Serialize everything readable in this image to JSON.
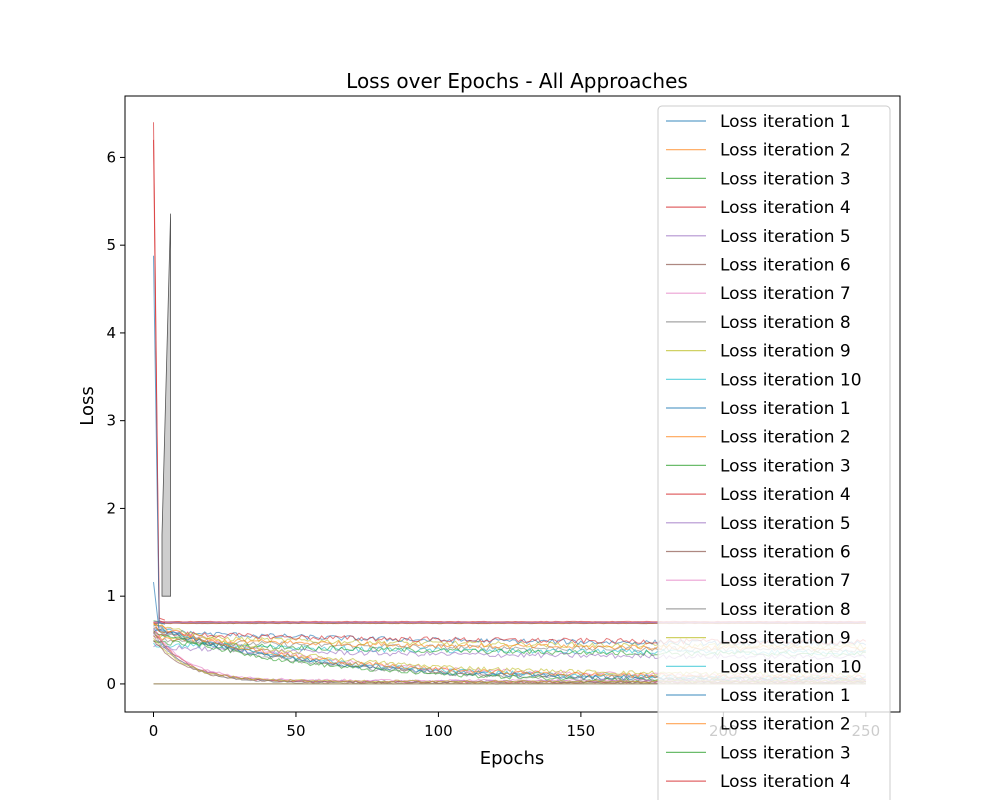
{
  "chart_data": {
    "type": "line",
    "title": "Loss over Epochs - All Approaches",
    "xlabel": "Epochs",
    "ylabel": "Loss",
    "xlim": [
      -10,
      262
    ],
    "ylim": [
      -0.32,
      6.7
    ],
    "x_ticks": [
      0,
      50,
      100,
      150,
      200,
      250
    ],
    "x_tick_labels": [
      "0",
      "50",
      "100",
      "150",
      "200",
      "250"
    ],
    "y_ticks": [
      0,
      1,
      2,
      3,
      4,
      5,
      6
    ],
    "y_tick_labels": [
      "0",
      "1",
      "2",
      "3",
      "4",
      "5",
      "6"
    ],
    "grid": false,
    "legend_position": "upper-right",
    "legend_entries": [
      {
        "label": "Loss iteration 1",
        "color": "#1f77b4"
      },
      {
        "label": "Loss iteration 2",
        "color": "#ff7f0e"
      },
      {
        "label": "Loss iteration 3",
        "color": "#2ca02c"
      },
      {
        "label": "Loss iteration 4",
        "color": "#d62728"
      },
      {
        "label": "Loss iteration 5",
        "color": "#9467bd"
      },
      {
        "label": "Loss iteration 6",
        "color": "#8c564b"
      },
      {
        "label": "Loss iteration 7",
        "color": "#e377c2"
      },
      {
        "label": "Loss iteration 8",
        "color": "#7f7f7f"
      },
      {
        "label": "Loss iteration 9",
        "color": "#bcbd22"
      },
      {
        "label": "Loss iteration 10",
        "color": "#17becf"
      },
      {
        "label": "Loss iteration 1",
        "color": "#1f77b4"
      },
      {
        "label": "Loss iteration 2",
        "color": "#ff7f0e"
      },
      {
        "label": "Loss iteration 3",
        "color": "#2ca02c"
      },
      {
        "label": "Loss iteration 4",
        "color": "#d62728"
      },
      {
        "label": "Loss iteration 5",
        "color": "#9467bd"
      },
      {
        "label": "Loss iteration 6",
        "color": "#8c564b"
      },
      {
        "label": "Loss iteration 7",
        "color": "#e377c2"
      },
      {
        "label": "Loss iteration 8",
        "color": "#7f7f7f"
      },
      {
        "label": "Loss iteration 9",
        "color": "#bcbd22"
      },
      {
        "label": "Loss iteration 10",
        "color": "#17becf"
      },
      {
        "label": "Loss iteration 1",
        "color": "#1f77b4"
      },
      {
        "label": "Loss iteration 2",
        "color": "#ff7f0e"
      },
      {
        "label": "Loss iteration 3",
        "color": "#2ca02c"
      },
      {
        "label": "Loss iteration 4",
        "color": "#d62728"
      }
    ],
    "series_groups": [
      {
        "kind": "flat",
        "start": [
          0.69,
          0.7,
          0.72,
          0.7,
          0.71,
          0.69,
          0.7
        ],
        "end": [
          0.7,
          0.69,
          0.7,
          0.71,
          0.7,
          0.69,
          0.7
        ]
      },
      {
        "kind": "slow",
        "start": [
          0.5,
          0.55,
          0.45,
          0.6,
          0.52,
          0.48,
          0.58,
          0.42
        ],
        "end": [
          0.38,
          0.42,
          0.35,
          0.45,
          0.4,
          0.33,
          0.47,
          0.3
        ]
      },
      {
        "kind": "medium",
        "start": [
          0.65,
          0.68,
          0.62,
          0.7,
          0.66,
          0.64,
          0.67,
          0.6
        ],
        "end": [
          0.05,
          0.08,
          0.03,
          0.1,
          0.06,
          0.04,
          0.07,
          0.02
        ]
      },
      {
        "kind": "fast",
        "start": [
          0.6,
          0.55,
          0.5,
          0.62,
          0.58,
          0.52
        ],
        "end": [
          0.02,
          0.03,
          0.02,
          0.04,
          0.01,
          0.03
        ]
      },
      {
        "kind": "zero",
        "start": [
          0,
          0,
          0
        ],
        "end": [
          0,
          0,
          0
        ]
      }
    ],
    "spikes": [
      {
        "color": "#d62728",
        "values": [
          6.4,
          0.75
        ]
      },
      {
        "color": "#d62728",
        "values": [
          6.2,
          0.72
        ]
      },
      {
        "color": "#1f77b4",
        "values": [
          4.88,
          0.7
        ]
      },
      {
        "color": "#1f77b4",
        "values": [
          1.16,
          0.6
        ]
      },
      {
        "color": "#ff7f0e",
        "values": [
          0.7,
          0.6
        ]
      }
    ],
    "fill_band": {
      "color": "#9e9e9e",
      "x": [
        3,
        3,
        6,
        6
      ],
      "y": [
        1.0,
        1.7,
        5.36,
        1.0
      ]
    }
  }
}
